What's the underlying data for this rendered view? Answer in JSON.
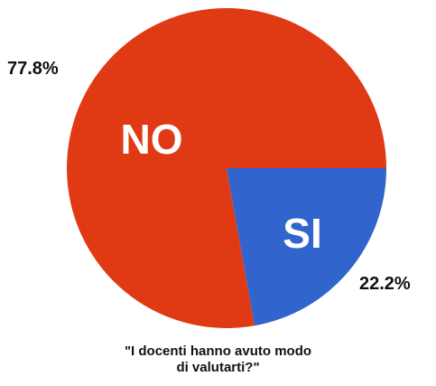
{
  "chart_data": {
    "type": "pie",
    "categories": [
      "NO",
      "SI"
    ],
    "values": [
      77.8,
      22.2
    ],
    "value_labels": [
      "77.8%",
      "22.2%"
    ],
    "colors": [
      "#e03a14",
      "#3164cc"
    ],
    "caption_lines": [
      "\"I docenti hanno avuto modo",
      "di valutarti?\""
    ]
  }
}
